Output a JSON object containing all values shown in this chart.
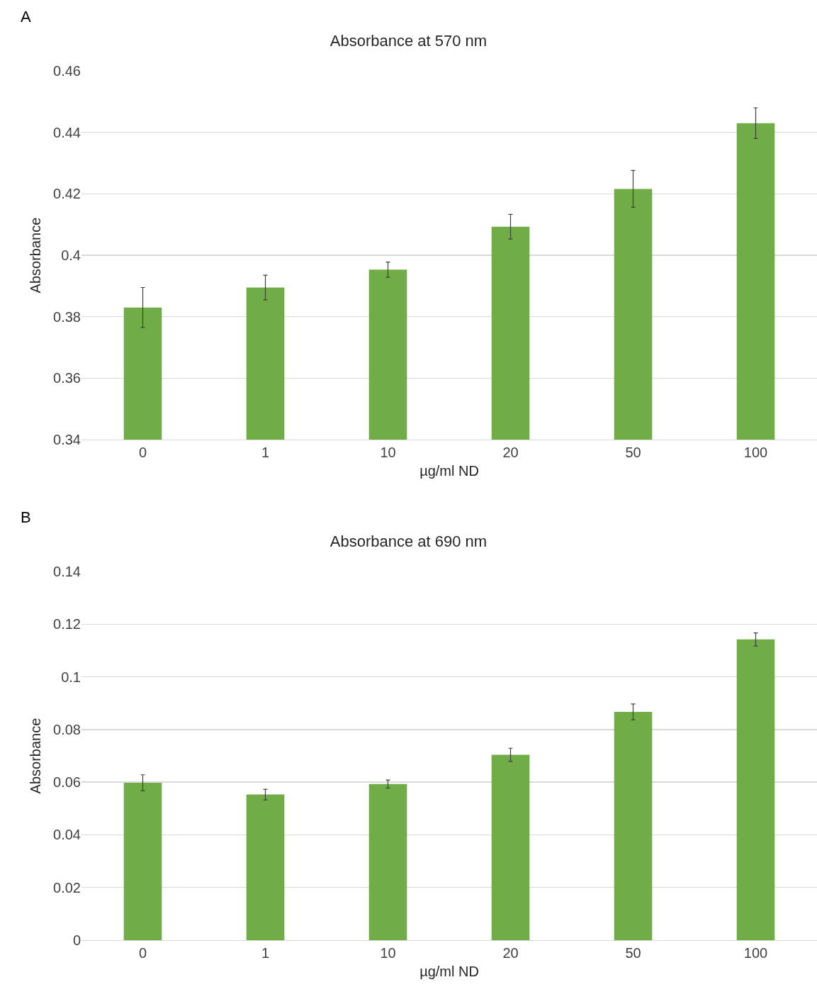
{
  "chart_data": [
    {
      "type": "bar",
      "title": "Absorbance at 570 nm",
      "xlabel": "µg/ml ND",
      "ylabel": "Absorbance",
      "annotations": [
        "A"
      ],
      "categories": [
        "0",
        "1",
        "10",
        "20",
        "50",
        "100"
      ],
      "values": [
        0.383,
        0.3895,
        0.3953,
        0.4093,
        0.4216,
        0.443
      ],
      "errors": [
        0.0065,
        0.004,
        0.0025,
        0.004,
        0.006,
        0.005
      ],
      "color": "#70ad47",
      "ylim": [
        0.34,
        0.46
      ],
      "yticks": [
        0.34,
        0.36,
        0.38,
        0.4,
        0.42,
        0.44,
        0.46
      ],
      "grid": "y"
    },
    {
      "type": "bar",
      "title": "Absorbance at 690 nm",
      "xlabel": "µg/ml ND",
      "ylabel": "Absorbance",
      "annotations": [
        "B"
      ],
      "categories": [
        "0",
        "1",
        "10",
        "20",
        "50",
        "100"
      ],
      "values": [
        0.0598,
        0.0553,
        0.0593,
        0.0704,
        0.0867,
        0.1142
      ],
      "errors": [
        0.003,
        0.002,
        0.0015,
        0.0025,
        0.003,
        0.0025
      ],
      "color": "#70ad47",
      "ylim": [
        0,
        0.14
      ],
      "yticks": [
        0,
        0.02,
        0.04,
        0.06,
        0.08,
        0.1,
        0.12,
        0.14
      ],
      "grid": "y"
    }
  ]
}
